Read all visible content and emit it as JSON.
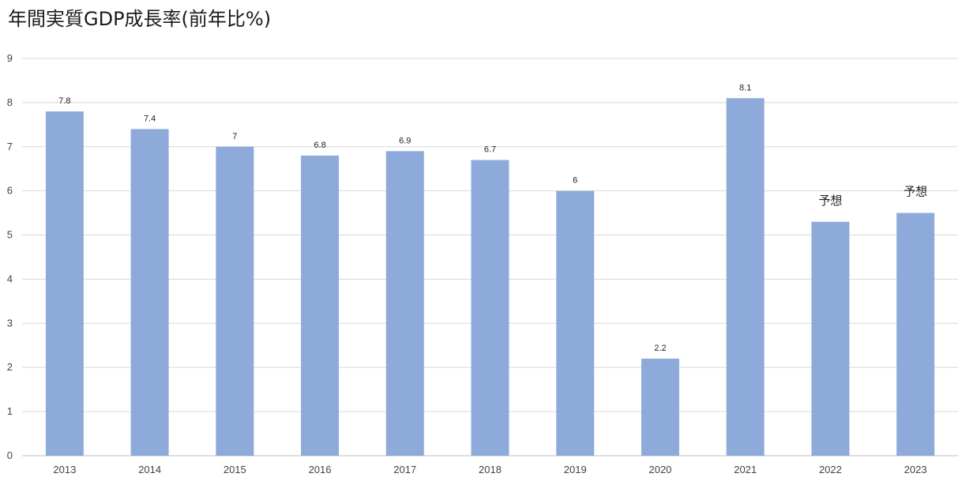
{
  "chart_data": {
    "type": "bar",
    "title": "年間実質GDP成長率(前年比%)",
    "xlabel": "",
    "ylabel": "",
    "categories": [
      "2013",
      "2014",
      "2015",
      "2016",
      "2017",
      "2018",
      "2019",
      "2020",
      "2021",
      "2022",
      "2023"
    ],
    "values": [
      7.8,
      7.4,
      7,
      6.8,
      6.9,
      6.7,
      6,
      2.2,
      8.1,
      5.3,
      5.5
    ],
    "data_labels": [
      "7.8",
      "7.4",
      "7",
      "6.8",
      "6.9",
      "6.7",
      "6",
      "2.2",
      "8.1",
      "予想",
      "予想"
    ],
    "ylim": [
      0,
      9
    ],
    "yticks": [
      "0",
      "1",
      "2",
      "3",
      "4",
      "5",
      "6",
      "7",
      "8",
      "9"
    ],
    "grid": true,
    "legend": "none",
    "colors": {
      "bar": "#8eaadb",
      "grid": "#d9d9d9",
      "axis": "#bfbfbf"
    }
  }
}
